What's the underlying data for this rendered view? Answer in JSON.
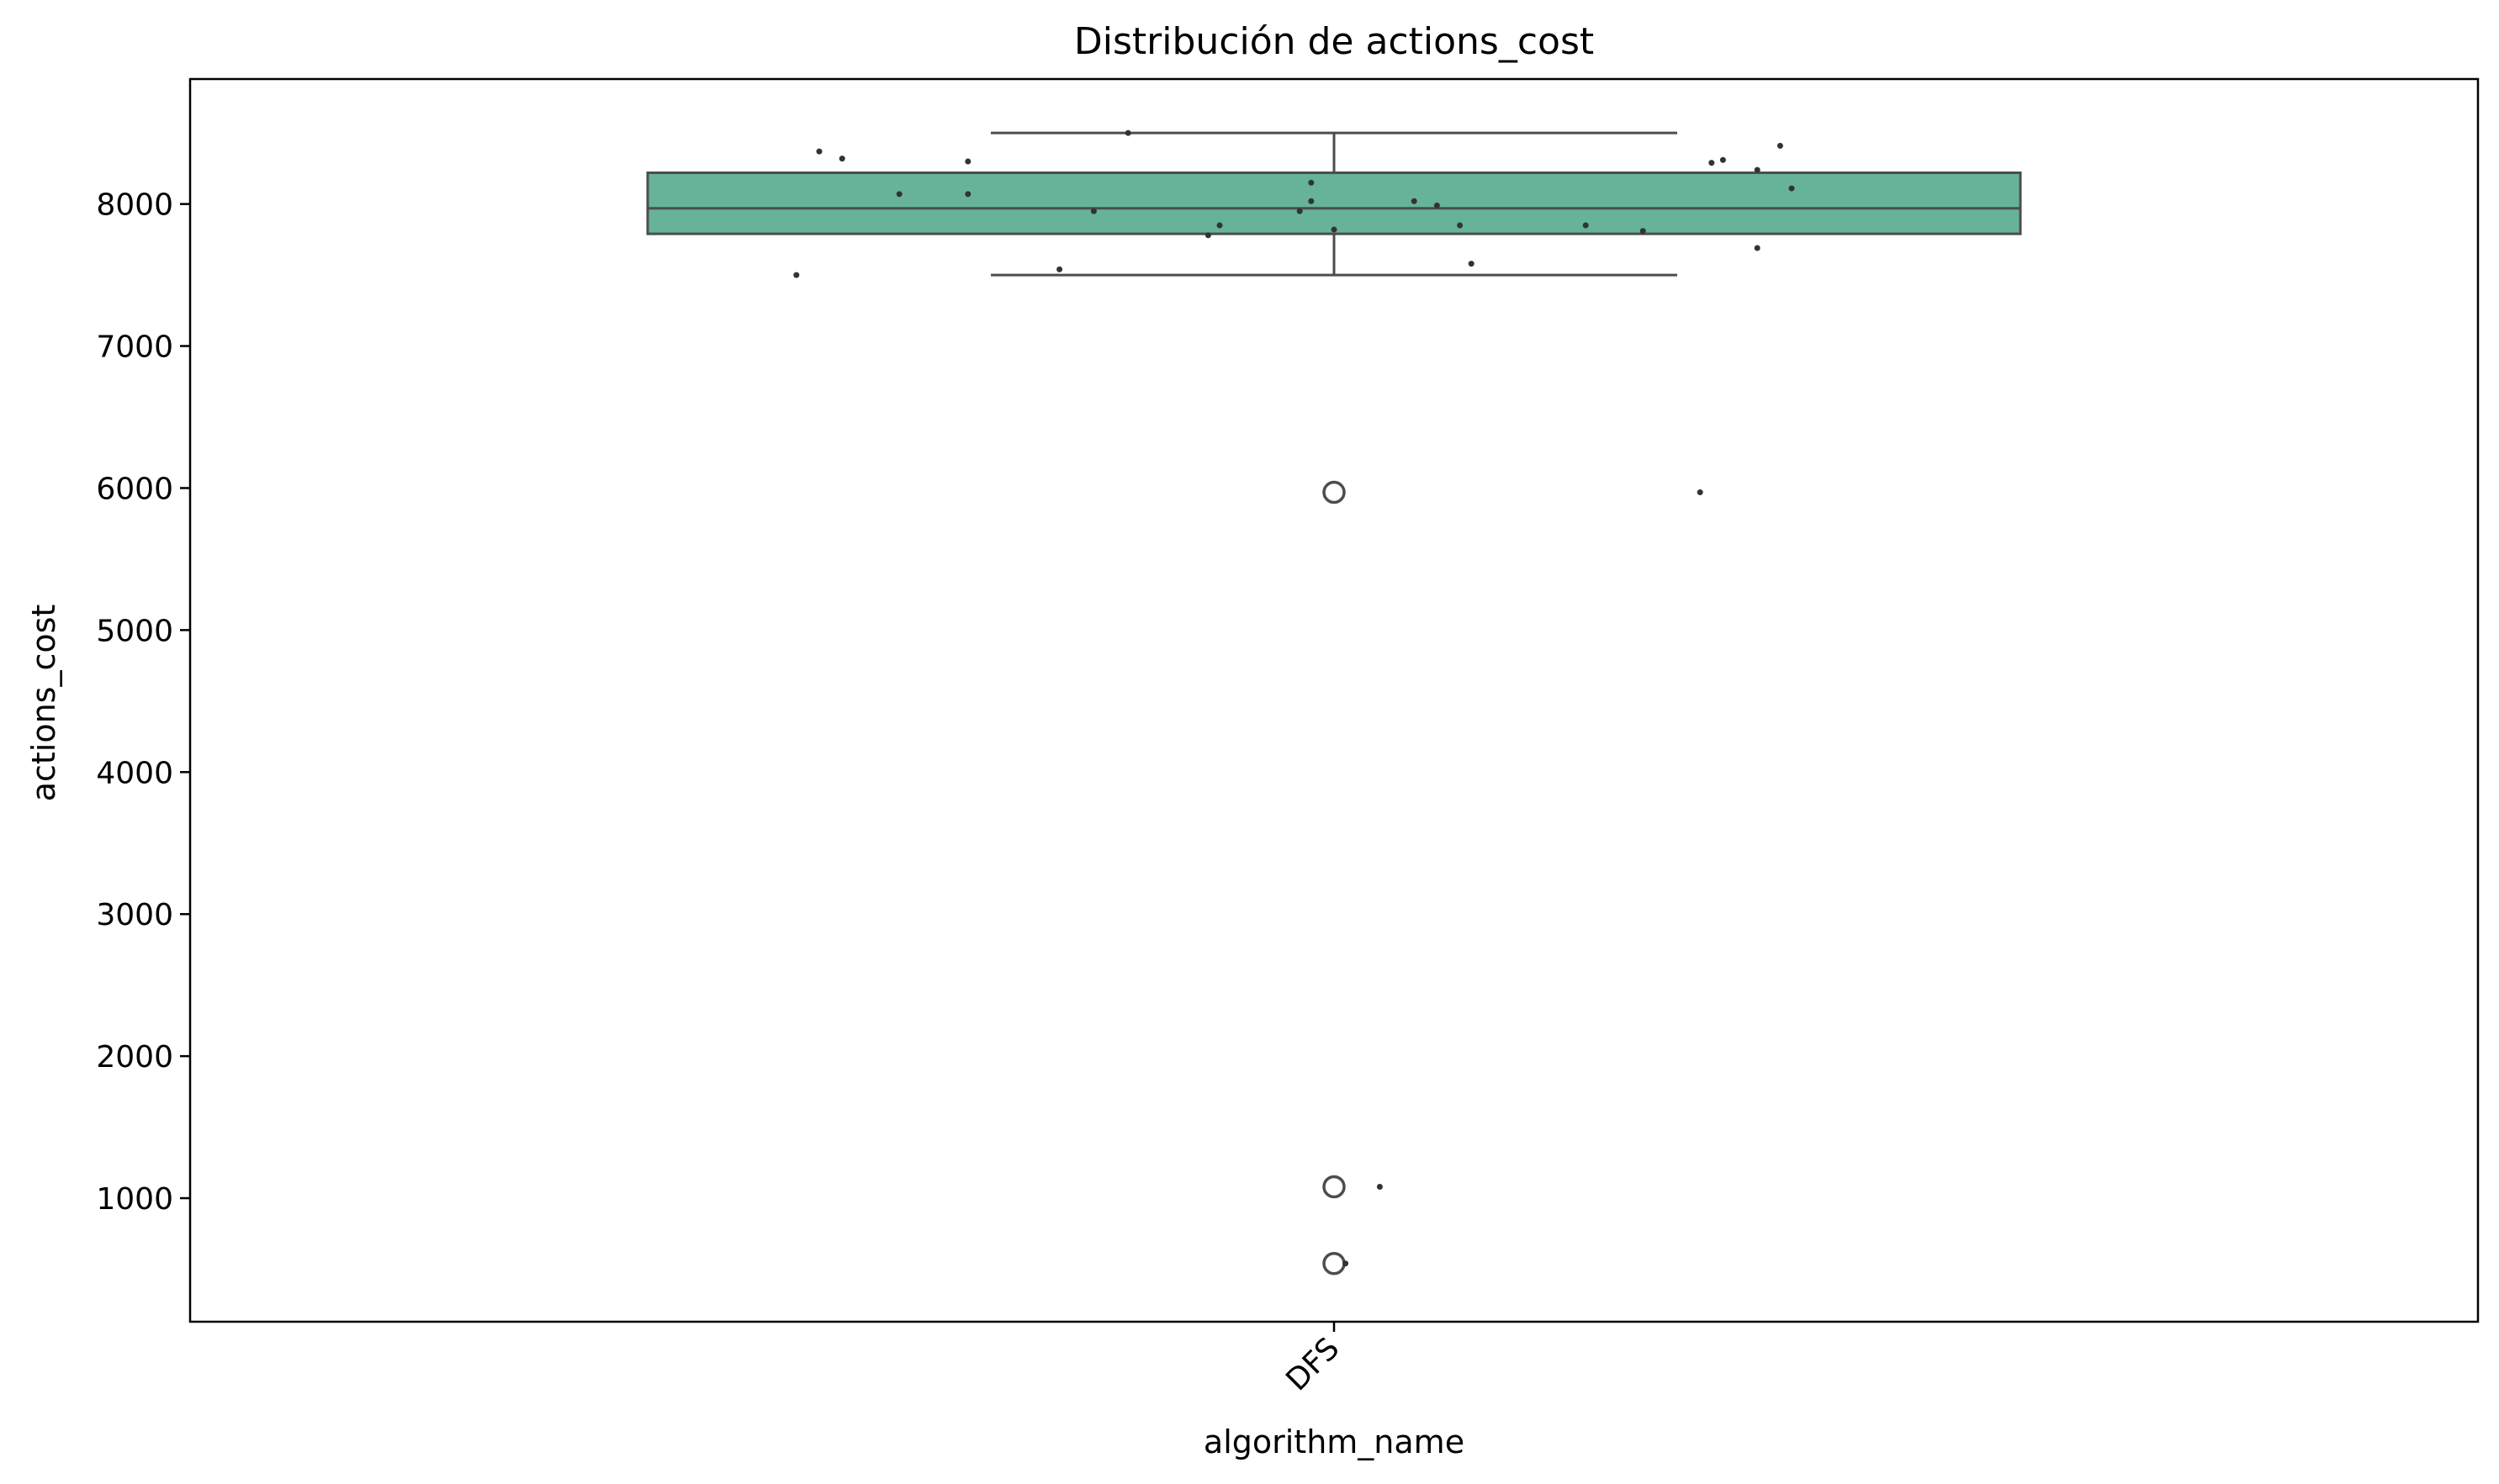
{
  "chart_data": {
    "type": "box",
    "title": "Distribución de actions_cost",
    "xlabel": "algorithm_name",
    "ylabel": "actions_cost",
    "categories": [
      "DFS"
    ],
    "ylim": [
      130,
      8880
    ],
    "yticks": [
      1000,
      2000,
      3000,
      4000,
      5000,
      6000,
      7000,
      8000
    ],
    "grid": false,
    "box": {
      "category": "DFS",
      "whisker_low": 7500,
      "q1": 7790,
      "median": 7970,
      "q3": 8220,
      "whisker_high": 8500,
      "fliers": [
        5970,
        1080,
        540
      ]
    },
    "points": [
      {
        "y": 8500,
        "jitter": -0.18
      },
      {
        "y": 8410,
        "jitter": 0.39
      },
      {
        "y": 8370,
        "jitter": -0.45
      },
      {
        "y": 8320,
        "jitter": -0.43
      },
      {
        "y": 8300,
        "jitter": -0.32
      },
      {
        "y": 8310,
        "jitter": 0.34
      },
      {
        "y": 8290,
        "jitter": 0.33
      },
      {
        "y": 8240,
        "jitter": 0.37
      },
      {
        "y": 8150,
        "jitter": -0.02
      },
      {
        "y": 8110,
        "jitter": 0.4
      },
      {
        "y": 8070,
        "jitter": -0.38
      },
      {
        "y": 8070,
        "jitter": -0.32
      },
      {
        "y": 8020,
        "jitter": -0.02
      },
      {
        "y": 8020,
        "jitter": 0.07
      },
      {
        "y": 7990,
        "jitter": 0.09
      },
      {
        "y": 7950,
        "jitter": -0.21
      },
      {
        "y": 7950,
        "jitter": -0.03
      },
      {
        "y": 7850,
        "jitter": -0.1
      },
      {
        "y": 7850,
        "jitter": 0.11
      },
      {
        "y": 7850,
        "jitter": 0.22
      },
      {
        "y": 7820,
        "jitter": 0.0
      },
      {
        "y": 7810,
        "jitter": 0.27
      },
      {
        "y": 7780,
        "jitter": -0.11
      },
      {
        "y": 7690,
        "jitter": 0.37
      },
      {
        "y": 7580,
        "jitter": 0.12
      },
      {
        "y": 7540,
        "jitter": -0.24
      },
      {
        "y": 7500,
        "jitter": -0.47
      },
      {
        "y": 5970,
        "jitter": 0.32
      },
      {
        "y": 1080,
        "jitter": 0.04
      },
      {
        "y": 540,
        "jitter": 0.01
      }
    ],
    "box_color": "#66b399",
    "line_color": "#4d4d4d",
    "point_color": "#333333"
  }
}
